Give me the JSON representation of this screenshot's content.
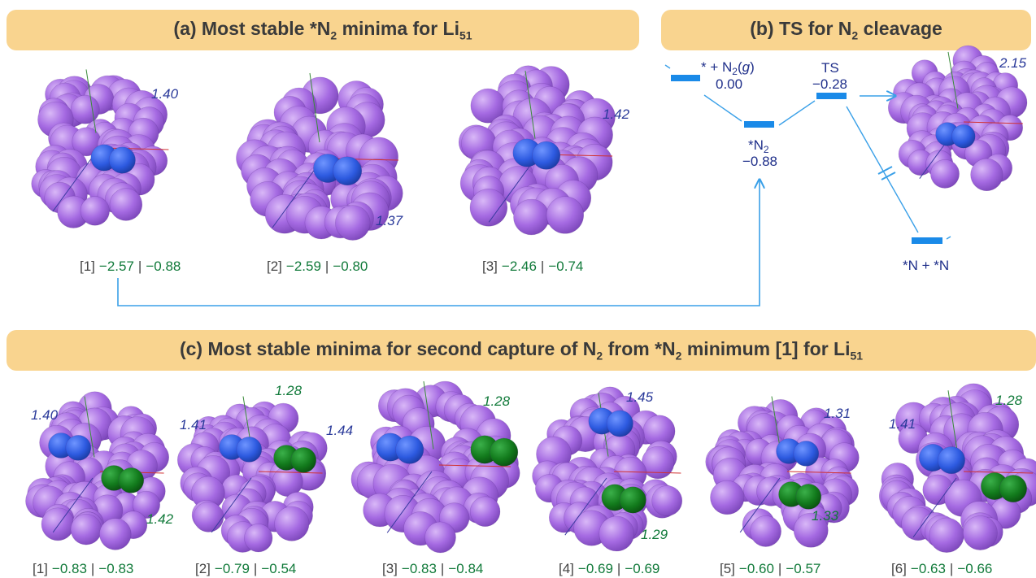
{
  "colors": {
    "banner": "#f9d48f",
    "li_atom": "#a56ae2",
    "n_atom_first": "#2d5ae0",
    "n_atom_second": "#127a1c",
    "energy_primary": "#117a3a",
    "distance_blue": "#2a3a9a",
    "arrow": "#3aa0e8",
    "level": "#1a8ae8",
    "label_gray": "#444444"
  },
  "panel_a": {
    "title_pre": "(a) Most stable *N",
    "title_sub": "2",
    "title_mid": " minima for Li",
    "title_sub2": "51",
    "structures": [
      {
        "index": "[1]",
        "e1": "−2.57",
        "e2": "−0.88",
        "distance": "1.40"
      },
      {
        "index": "[2]",
        "e1": "−2.59",
        "e2": "−0.80",
        "distance": "1.37"
      },
      {
        "index": "[3]",
        "e1": "−2.46",
        "e2": "−0.74",
        "distance": "1.42"
      }
    ]
  },
  "panel_b": {
    "title_pre": "(b) TS for N",
    "title_sub": "2",
    "title_post": " cleavage",
    "states": {
      "gas": {
        "label_pre": "* + N",
        "label_sub": "2",
        "label_paren": "(g)",
        "energy": "0.00"
      },
      "adsorbed": {
        "label_pre": "*N",
        "label_sub": "2",
        "energy": "−0.88"
      },
      "ts": {
        "label": "TS",
        "energy": "−0.28"
      },
      "dissociated": {
        "label": "*N + *N"
      }
    },
    "ts_distance": "2.15"
  },
  "panel_c": {
    "title_pre": "(c) Most stable minima for second capture of N",
    "title_sub": "2",
    "title_mid": " from *N",
    "title_sub2": "2",
    "title_mid2": " minimum [1] for Li",
    "title_sub3": "51",
    "structures": [
      {
        "index": "[1]",
        "e1": "−0.83",
        "e2": "−0.83",
        "d_first": "1.40",
        "d_second": "1.42"
      },
      {
        "index": "[2]",
        "e1": "−0.79",
        "e2": "−0.54",
        "d_first": "1.41",
        "d_second": "1.28"
      },
      {
        "index": "[3]",
        "e1": "−0.83",
        "e2": "−0.84",
        "d_first": "1.44",
        "d_second": "1.28"
      },
      {
        "index": "[4]",
        "e1": "−0.69",
        "e2": "−0.69",
        "d_first": "1.45",
        "d_second": "1.29"
      },
      {
        "index": "[5]",
        "e1": "−0.60",
        "e2": "−0.57",
        "d_first": "1.31",
        "d_second": "1.33"
      },
      {
        "index": "[6]",
        "e1": "−0.63",
        "e2": "−0.66",
        "d_first": "1.41",
        "d_second": "1.28"
      }
    ]
  }
}
